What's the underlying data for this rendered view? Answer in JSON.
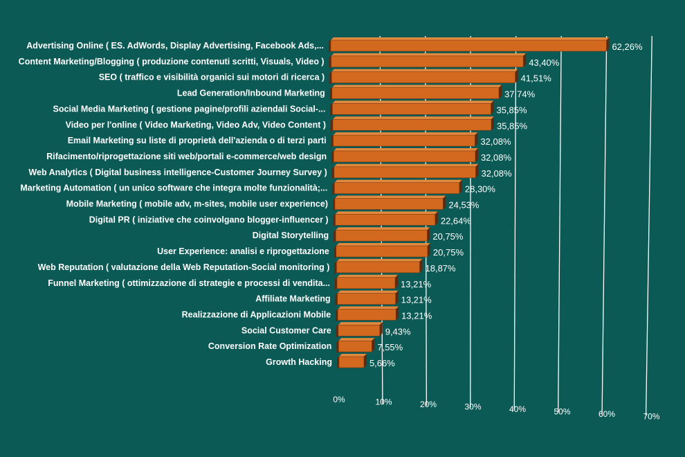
{
  "chart_data": {
    "type": "bar",
    "orientation": "horizontal",
    "categories": [
      "Advertising Online ( ES. AdWords, Display Advertising, Facebook Ads,...",
      "Content Marketing/Blogging ( produzione contenuti scritti, Visuals, Video )",
      "SEO ( traffico e visibilità organici sui motori di ricerca )",
      "Lead Generation/Inbound Marketing",
      "Social Media Marketing ( gestione pagine/profili aziendali Social-...",
      "Video per l'online ( Video Marketing, Video Adv, Video Content )",
      "Email Marketing su liste di proprietà dell'azienda o di terzi parti",
      "Rifacimento/riprogettazione siti web/portali e-commerce/web design",
      "Web Analytics ( Digital business intelligence-Customer Journey Survey )",
      "Marketing Automation ( un unico software che integra molte funzionalità;...",
      "Mobile Marketing ( mobile adv, m-sites, mobile user experience)",
      "Digital PR ( iniziative che coinvolgano blogger-influencer )",
      "Digital Storytelling",
      "User Experience: analisi e riprogettazione",
      "Web Reputation ( valutazione della Web Reputation-Social monitoring )",
      "Funnel Marketing ( ottimizzazione di strategie e processi di vendita...",
      "Affiliate Marketing",
      "Realizzazione di Applicazioni Mobile",
      "Social Customer Care",
      "Conversion Rate Optimization",
      "Growth Hacking"
    ],
    "values": [
      62.26,
      43.4,
      41.51,
      37.74,
      35.85,
      35.85,
      32.08,
      32.08,
      32.08,
      28.3,
      24.53,
      22.64,
      20.75,
      20.75,
      18.87,
      13.21,
      13.21,
      13.21,
      9.43,
      7.55,
      5.66
    ],
    "value_labels": [
      "62,26%",
      "43,40%",
      "41,51%",
      "37,74%",
      "35,85%",
      "35,85%",
      "32,08%",
      "32,08%",
      "32,08%",
      "28,30%",
      "24,53%",
      "22,64%",
      "20,75%",
      "20,75%",
      "18,87%",
      "13,21%",
      "13,21%",
      "13,21%",
      "9,43%",
      "7,55%",
      "5,66%"
    ],
    "xlim": [
      0,
      70
    ],
    "xticks": [
      0,
      10,
      20,
      30,
      40,
      50,
      60,
      70
    ],
    "xtick_labels": [
      "0%",
      "10%",
      "20%",
      "30%",
      "40%",
      "50%",
      "60%",
      "70%"
    ],
    "grid": true,
    "perspective": "3d-tilted",
    "colors": {
      "background": "#0b5a55",
      "bar_front": "#d2691e",
      "bar_top": "#e3893e",
      "bar_side": "#5e2a10",
      "gridline": "#ffffff",
      "text": "#ffffff"
    }
  }
}
